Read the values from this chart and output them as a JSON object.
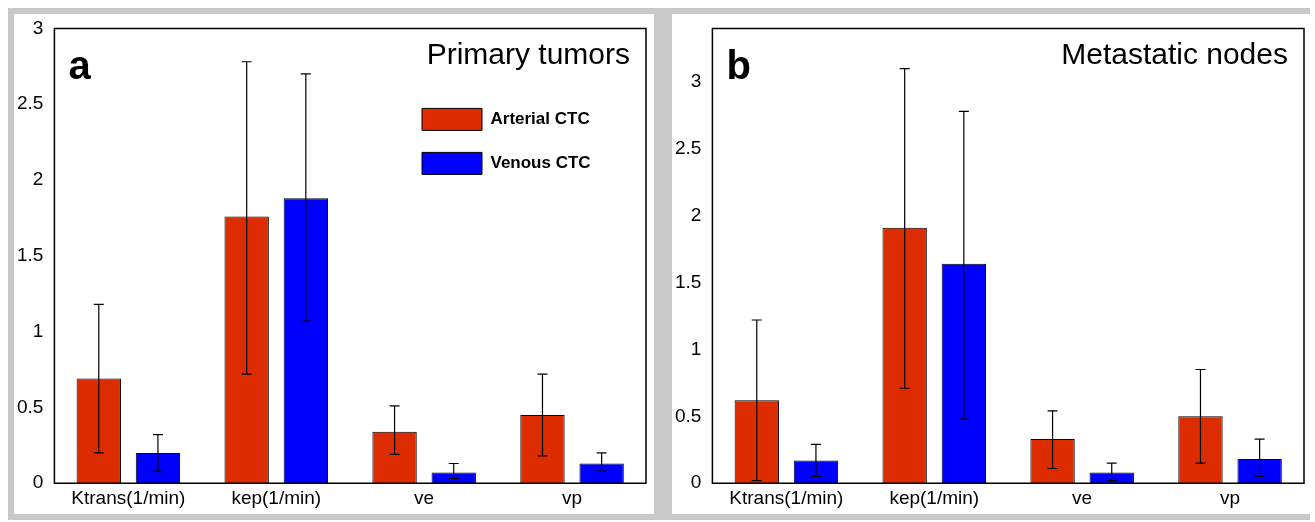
{
  "chart_data": [
    {
      "type": "bar",
      "title": "Primary tumors",
      "annotations": [
        "a"
      ],
      "categories": [
        "Ktrans(1/min)",
        "kep(1/min)",
        "ve",
        "vp"
      ],
      "series": [
        {
          "name": "Arterial CTC",
          "color": "#dd2c00",
          "values": [
            0.69,
            1.76,
            0.34,
            0.45
          ],
          "errors": [
            [
              0.2,
              1.18
            ],
            [
              0.72,
              2.78
            ],
            [
              0.19,
              0.51
            ],
            [
              0.18,
              0.72
            ]
          ]
        },
        {
          "name": "Venous CTC",
          "color": "#0000ff",
          "values": [
            0.2,
            1.88,
            0.07,
            0.13
          ],
          "errors": [
            [
              0.08,
              0.32
            ],
            [
              1.07,
              2.7
            ],
            [
              0.03,
              0.13
            ],
            [
              0.08,
              0.2
            ]
          ]
        }
      ],
      "ylim": [
        0,
        3
      ],
      "yticks": [
        0,
        0.5,
        1,
        1.5,
        2,
        2.5,
        3
      ],
      "grid": false,
      "legend": "top right"
    },
    {
      "type": "bar",
      "title": "Metastatic nodes",
      "annotations": [
        "b"
      ],
      "categories": [
        "Ktrans(1/min)",
        "kep(1/min)",
        "ve",
        "vp"
      ],
      "series": [
        {
          "color": "#dd2c00",
          "values": [
            0.62,
            1.91,
            0.33,
            0.5
          ],
          "errors": [
            [
              0.02,
              1.22
            ],
            [
              0.71,
              3.1
            ],
            [
              0.11,
              0.54
            ],
            [
              0.15,
              0.85
            ]
          ]
        },
        {
          "color": "#0000ff",
          "values": [
            0.17,
            1.64,
            0.08,
            0.18
          ],
          "errors": [
            [
              0.05,
              0.29
            ],
            [
              0.48,
              2.78
            ],
            [
              0.02,
              0.15
            ],
            [
              0.05,
              0.33
            ]
          ]
        }
      ],
      "ylim": [
        0,
        3.4
      ],
      "yticks": [
        0,
        0.5,
        1,
        1.5,
        2,
        2.5,
        3
      ],
      "grid": false,
      "legend": false
    }
  ]
}
